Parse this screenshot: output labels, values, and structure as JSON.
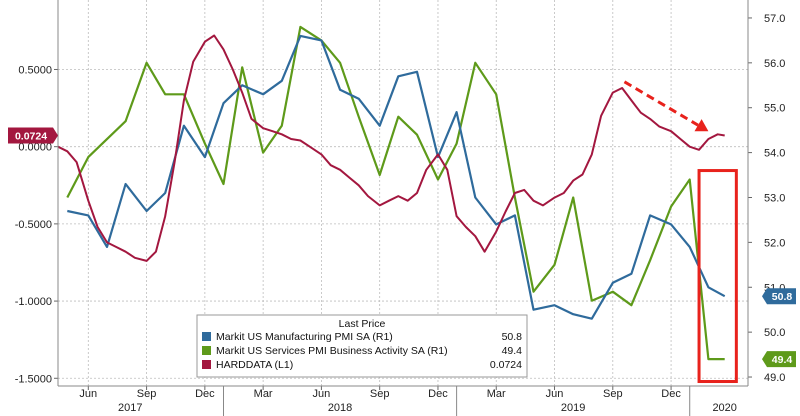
{
  "chart_data": {
    "type": "line",
    "left_axis": {
      "ylim": [
        -1.55,
        0.95
      ],
      "ticks": [
        0.5,
        0.0,
        -0.5,
        -1.0,
        -1.5
      ],
      "tick_labels": [
        "0.5000",
        "0.0000",
        "-0.5000",
        "-1.0000",
        "-1.5000"
      ]
    },
    "right_axis": {
      "ylim": [
        48.8,
        57.4
      ],
      "ticks": [
        57,
        56,
        55,
        54,
        53,
        52,
        51,
        50,
        49
      ],
      "tick_labels": [
        "57.0",
        "56.0",
        "55.0",
        "54.0",
        "53.0",
        "52.0",
        "51.0",
        "50.0",
        "49.0"
      ]
    },
    "x_axis": {
      "xlim": [
        2017.29,
        2020.25
      ],
      "month_ticks": [
        {
          "x": 2017.42,
          "label": "Jun"
        },
        {
          "x": 2017.67,
          "label": "Sep"
        },
        {
          "x": 2017.92,
          "label": "Dec"
        },
        {
          "x": 2018.17,
          "label": "Mar"
        },
        {
          "x": 2018.42,
          "label": "Jun"
        },
        {
          "x": 2018.67,
          "label": "Sep"
        },
        {
          "x": 2018.92,
          "label": "Dec"
        },
        {
          "x": 2019.17,
          "label": "Mar"
        },
        {
          "x": 2019.42,
          "label": "Jun"
        },
        {
          "x": 2019.67,
          "label": "Sep"
        },
        {
          "x": 2019.92,
          "label": "Dec"
        }
      ],
      "year_labels": [
        {
          "x": 2017.6,
          "label": "2017"
        },
        {
          "x": 2018.5,
          "label": "2018"
        },
        {
          "x": 2019.5,
          "label": "2019"
        },
        {
          "x": 2020.15,
          "label": "2020"
        }
      ]
    },
    "legend": {
      "title": "Last Price",
      "placement": "bottom-center",
      "entries": [
        {
          "name": "Markit US Manufacturing PMI SA  (R1)",
          "value": "50.8"
        },
        {
          "name": "Markit US Services PMI Business Activity SA  (R1)",
          "value": "49.4"
        },
        {
          "name": "HARDDATA  (L1)",
          "value": "0.0724"
        }
      ]
    },
    "series": [
      {
        "name": "Markit US Manufacturing PMI SA",
        "axis": "right",
        "color": "#2f6b9c",
        "last_value_label": "50.8",
        "x": [
          2017.33,
          2017.42,
          2017.5,
          2017.58,
          2017.67,
          2017.75,
          2017.83,
          2017.92,
          2018.0,
          2018.08,
          2018.17,
          2018.25,
          2018.33,
          2018.42,
          2018.5,
          2018.58,
          2018.67,
          2018.75,
          2018.83,
          2018.92,
          2019.0,
          2019.08,
          2019.17,
          2019.25,
          2019.33,
          2019.42,
          2019.5,
          2019.58,
          2019.67,
          2019.75,
          2019.83,
          2019.92,
          2020.0,
          2020.08,
          2020.15
        ],
        "values": [
          52.7,
          52.6,
          51.9,
          53.3,
          52.7,
          53.1,
          54.6,
          53.9,
          55.1,
          55.5,
          55.3,
          55.6,
          56.6,
          56.5,
          55.4,
          55.2,
          54.6,
          55.7,
          55.8,
          53.9,
          54.9,
          53.0,
          52.4,
          52.6,
          50.5,
          50.6,
          50.4,
          50.3,
          51.1,
          51.3,
          52.6,
          52.4,
          51.9,
          51.0,
          50.8
        ]
      },
      {
        "name": "Markit US Services PMI Business Activity SA",
        "axis": "right",
        "color": "#5e9a1a",
        "last_value_label": "49.4",
        "x": [
          2017.33,
          2017.42,
          2017.5,
          2017.58,
          2017.67,
          2017.75,
          2017.83,
          2017.92,
          2018.0,
          2018.08,
          2018.17,
          2018.25,
          2018.33,
          2018.42,
          2018.5,
          2018.58,
          2018.67,
          2018.75,
          2018.83,
          2018.92,
          2019.0,
          2019.08,
          2019.17,
          2019.25,
          2019.33,
          2019.42,
          2019.5,
          2019.58,
          2019.67,
          2019.75,
          2019.83,
          2019.92,
          2020.0,
          2020.08,
          2020.15
        ],
        "values": [
          53.0,
          53.9,
          54.3,
          54.7,
          56.0,
          55.3,
          55.3,
          54.2,
          53.3,
          55.9,
          54.0,
          54.6,
          56.8,
          56.5,
          56.0,
          54.8,
          53.5,
          54.8,
          54.4,
          53.4,
          54.2,
          56.0,
          55.3,
          53.0,
          50.9,
          51.5,
          53.0,
          50.7,
          50.9,
          50.6,
          51.6,
          52.8,
          53.4,
          49.4,
          49.4
        ]
      },
      {
        "name": "HARDDATA",
        "axis": "left",
        "color": "#a3173f",
        "last_value_label": "0.0724",
        "x": [
          2017.29,
          2017.33,
          2017.37,
          2017.42,
          2017.46,
          2017.5,
          2017.54,
          2017.58,
          2017.62,
          2017.67,
          2017.71,
          2017.75,
          2017.79,
          2017.83,
          2017.87,
          2017.92,
          2017.96,
          2018.0,
          2018.04,
          2018.08,
          2018.12,
          2018.17,
          2018.21,
          2018.25,
          2018.29,
          2018.33,
          2018.37,
          2018.42,
          2018.46,
          2018.5,
          2018.54,
          2018.58,
          2018.62,
          2018.67,
          2018.71,
          2018.75,
          2018.79,
          2018.83,
          2018.87,
          2018.92,
          2018.96,
          2019.0,
          2019.04,
          2019.08,
          2019.12,
          2019.17,
          2019.21,
          2019.25,
          2019.29,
          2019.33,
          2019.37,
          2019.42,
          2019.46,
          2019.5,
          2019.54,
          2019.58,
          2019.62,
          2019.67,
          2019.71,
          2019.75,
          2019.79,
          2019.83,
          2019.87,
          2019.92,
          2019.96,
          2020.0,
          2020.04,
          2020.08,
          2020.12,
          2020.15
        ],
        "values": [
          0.0,
          -0.03,
          -0.1,
          -0.35,
          -0.52,
          -0.62,
          -0.65,
          -0.68,
          -0.72,
          -0.74,
          -0.68,
          -0.45,
          -0.1,
          0.3,
          0.55,
          0.68,
          0.72,
          0.63,
          0.5,
          0.35,
          0.18,
          0.12,
          0.1,
          0.08,
          0.05,
          0.04,
          0.0,
          -0.05,
          -0.12,
          -0.15,
          -0.2,
          -0.25,
          -0.32,
          -0.38,
          -0.35,
          -0.32,
          -0.35,
          -0.3,
          -0.15,
          -0.05,
          -0.15,
          -0.45,
          -0.52,
          -0.58,
          -0.68,
          -0.55,
          -0.42,
          -0.3,
          -0.28,
          -0.35,
          -0.38,
          -0.33,
          -0.3,
          -0.22,
          -0.18,
          -0.05,
          0.2,
          0.35,
          0.38,
          0.3,
          0.22,
          0.18,
          0.13,
          0.1,
          0.05,
          0.0,
          -0.02,
          0.05,
          0.08,
          0.0724
        ]
      }
    ],
    "annotations": [
      {
        "type": "dashed-arrow",
        "color": "#e8221c",
        "from": {
          "x": 2019.72,
          "y_left": 0.42
        },
        "to": {
          "x": 2020.08,
          "y_left": 0.1
        }
      },
      {
        "type": "highlight-box",
        "color": "#e8221c",
        "x_range": [
          2020.04,
          2020.2
        ],
        "y_right_range": [
          48.9,
          53.6
        ]
      }
    ]
  }
}
